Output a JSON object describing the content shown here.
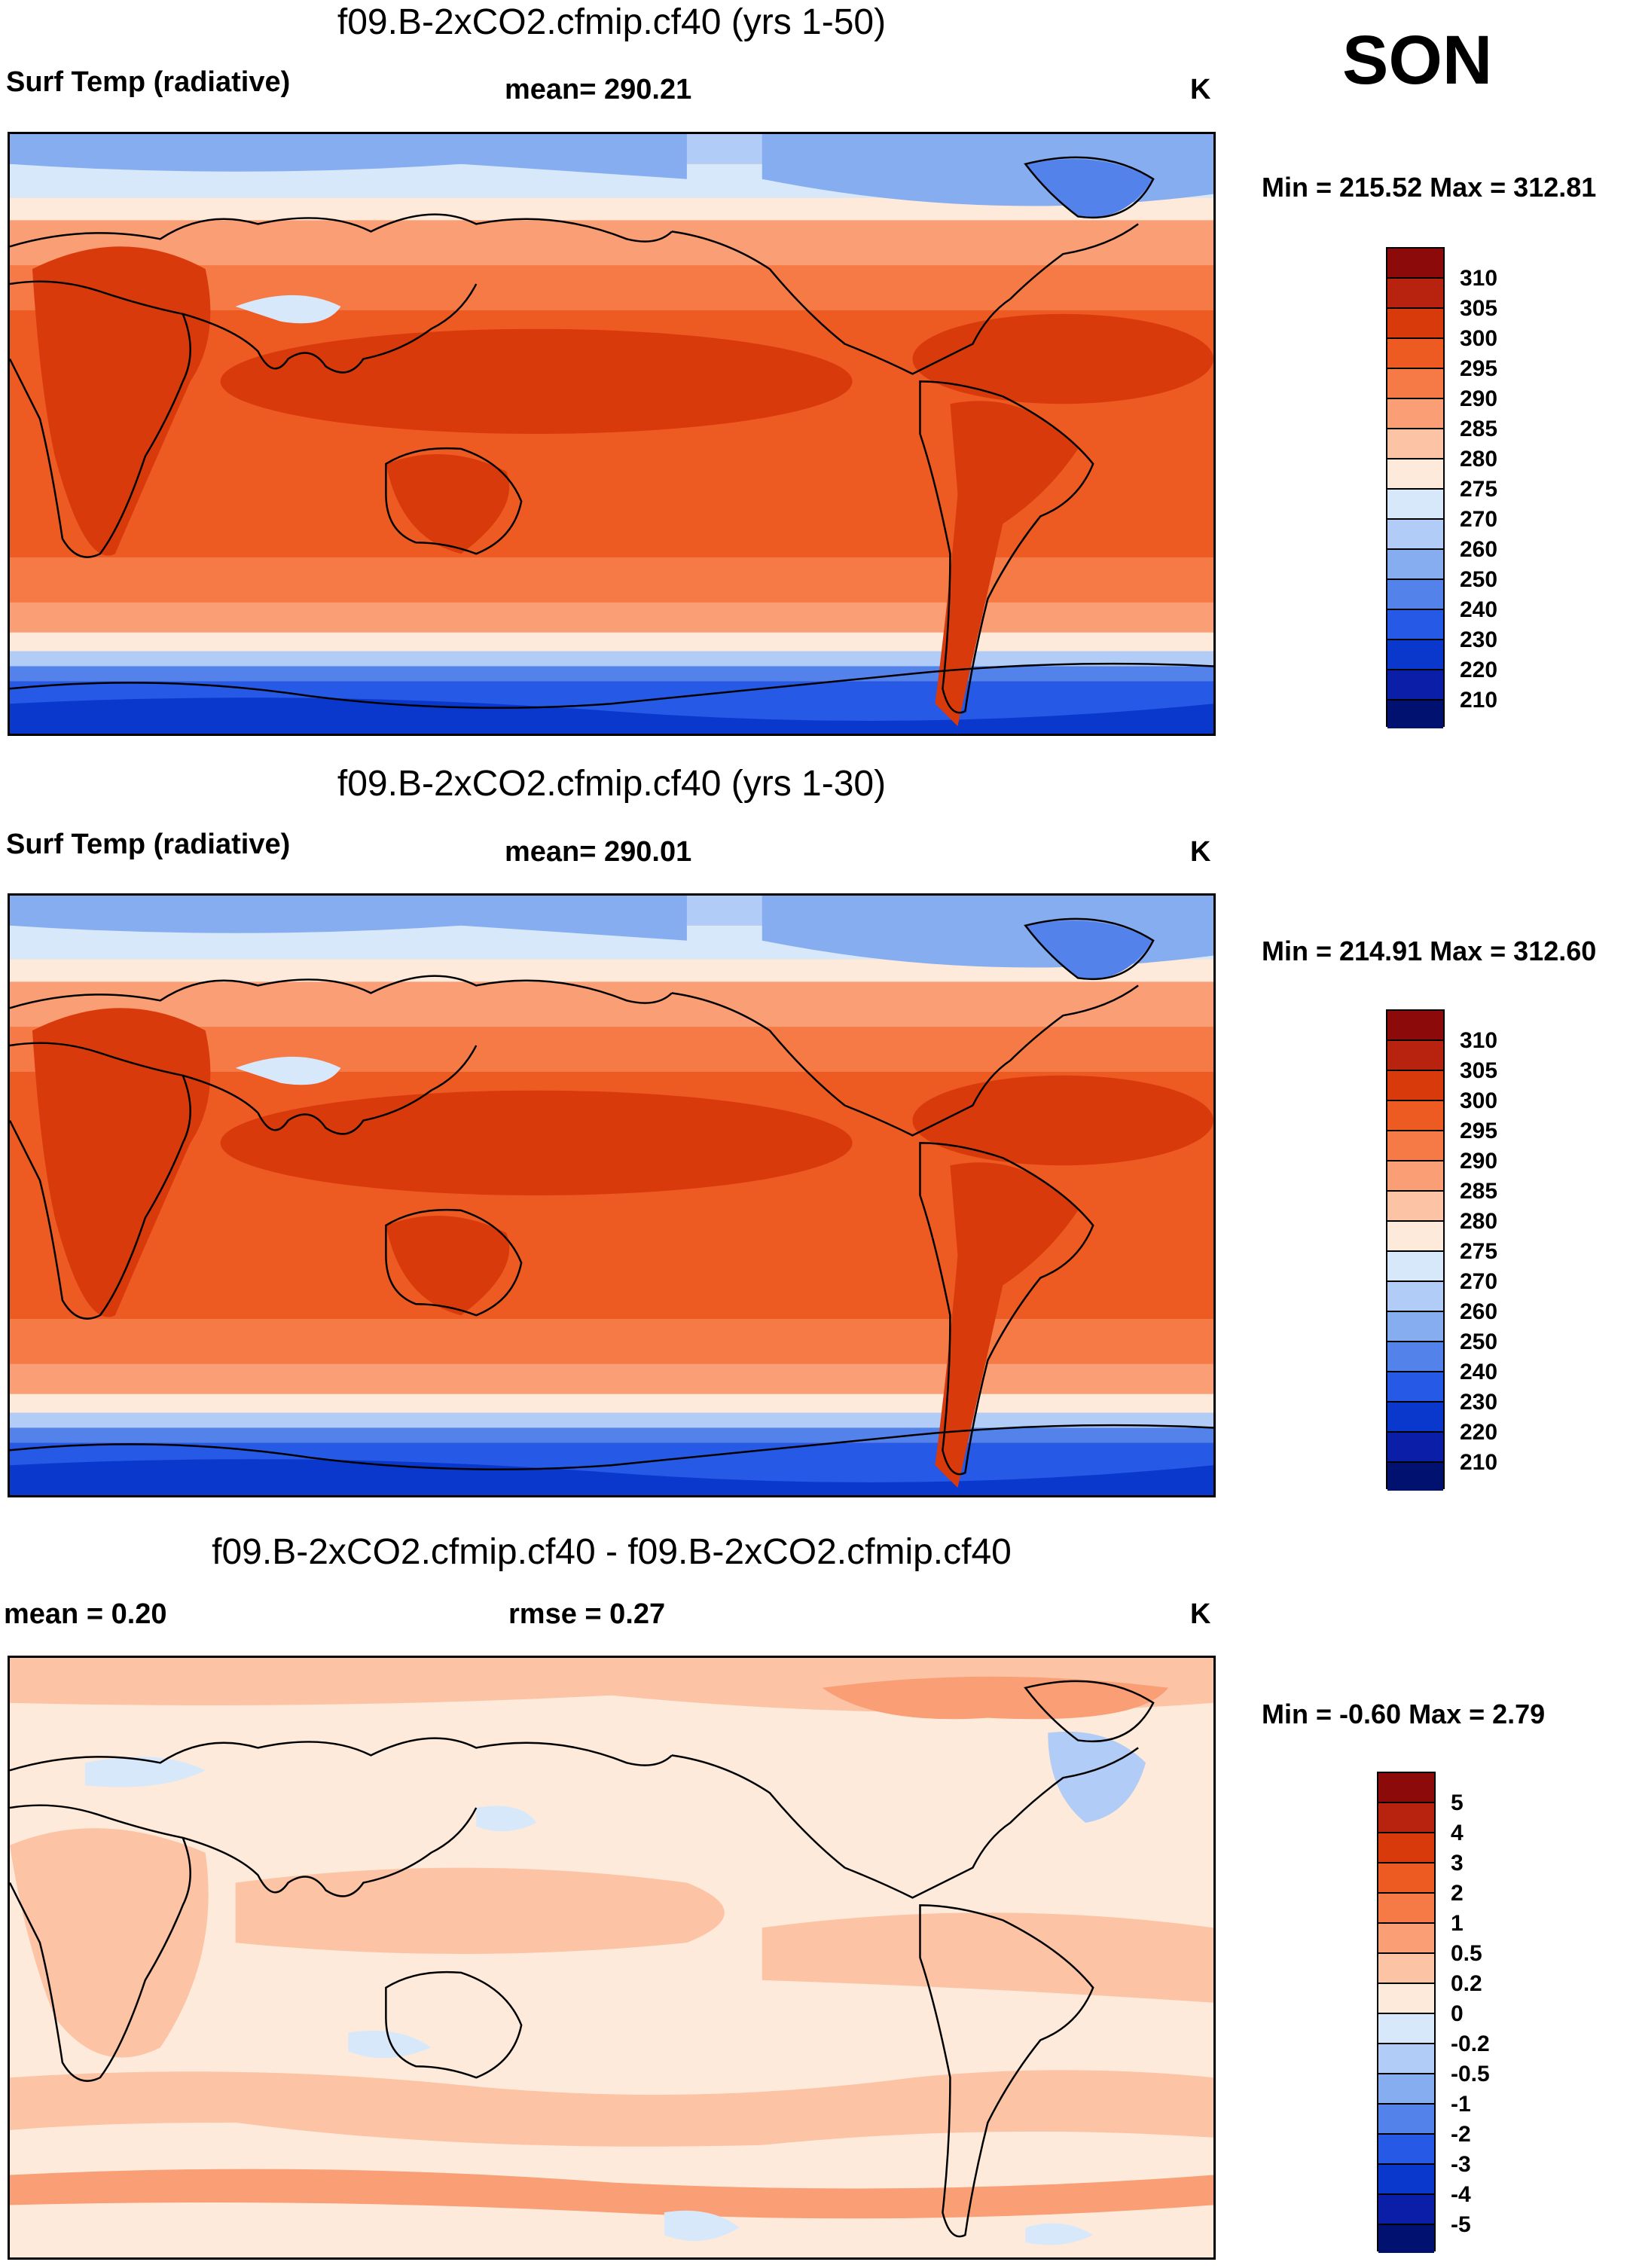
{
  "season": "SON",
  "panels": [
    {
      "title": "f09.B-2xCO2.cfmip.cf40 (yrs 1-50)",
      "left_label": "Surf Temp (radiative)",
      "center_label": "mean= 290.21",
      "units": "K",
      "minmax": "Min = 215.52 Max = 312.81",
      "colorbar": {
        "labels": [
          "310",
          "305",
          "300",
          "295",
          "290",
          "285",
          "280",
          "275",
          "270",
          "260",
          "250",
          "240",
          "230",
          "220",
          "210"
        ],
        "colors": [
          "#8c0a0a",
          "#b8230f",
          "#d93a0c",
          "#ed5a22",
          "#f57a45",
          "#f99e75",
          "#fcc3a5",
          "#feeadb",
          "#d8e8fb",
          "#b1ccf6",
          "#86adf0",
          "#5383ea",
          "#2559e6",
          "#0a38cd",
          "#0a1ea8",
          "#001170"
        ]
      }
    },
    {
      "title": "f09.B-2xCO2.cfmip.cf40 (yrs 1-30)",
      "left_label": "Surf Temp (radiative)",
      "center_label": "mean= 290.01",
      "units": "K",
      "minmax": "Min = 214.91 Max = 312.60",
      "colorbar": {
        "labels": [
          "310",
          "305",
          "300",
          "295",
          "290",
          "285",
          "280",
          "275",
          "270",
          "260",
          "250",
          "240",
          "230",
          "220",
          "210"
        ],
        "colors": [
          "#8c0a0a",
          "#b8230f",
          "#d93a0c",
          "#ed5a22",
          "#f57a45",
          "#f99e75",
          "#fcc3a5",
          "#feeadb",
          "#d8e8fb",
          "#b1ccf6",
          "#86adf0",
          "#5383ea",
          "#2559e6",
          "#0a38cd",
          "#0a1ea8",
          "#001170"
        ]
      }
    },
    {
      "title": "f09.B-2xCO2.cfmip.cf40 - f09.B-2xCO2.cfmip.cf40",
      "left_label": "mean =   0.20",
      "center_label": "rmse =   0.27",
      "units": "K",
      "minmax": "Min =  -0.60 Max =   2.79",
      "colorbar": {
        "labels": [
          "5",
          "4",
          "3",
          "2",
          "1",
          "0.5",
          "0.2",
          "0",
          "-0.2",
          "-0.5",
          "-1",
          "-2",
          "-3",
          "-4",
          "-5"
        ],
        "colors": [
          "#8c0a0a",
          "#b8230f",
          "#d93a0c",
          "#ed5a22",
          "#f57a45",
          "#f99e75",
          "#fcc3a5",
          "#feeadb",
          "#d8e8fb",
          "#b1ccf6",
          "#86adf0",
          "#5383ea",
          "#2559e6",
          "#0a38cd",
          "#0a1ea8",
          "#001170"
        ]
      }
    }
  ]
}
